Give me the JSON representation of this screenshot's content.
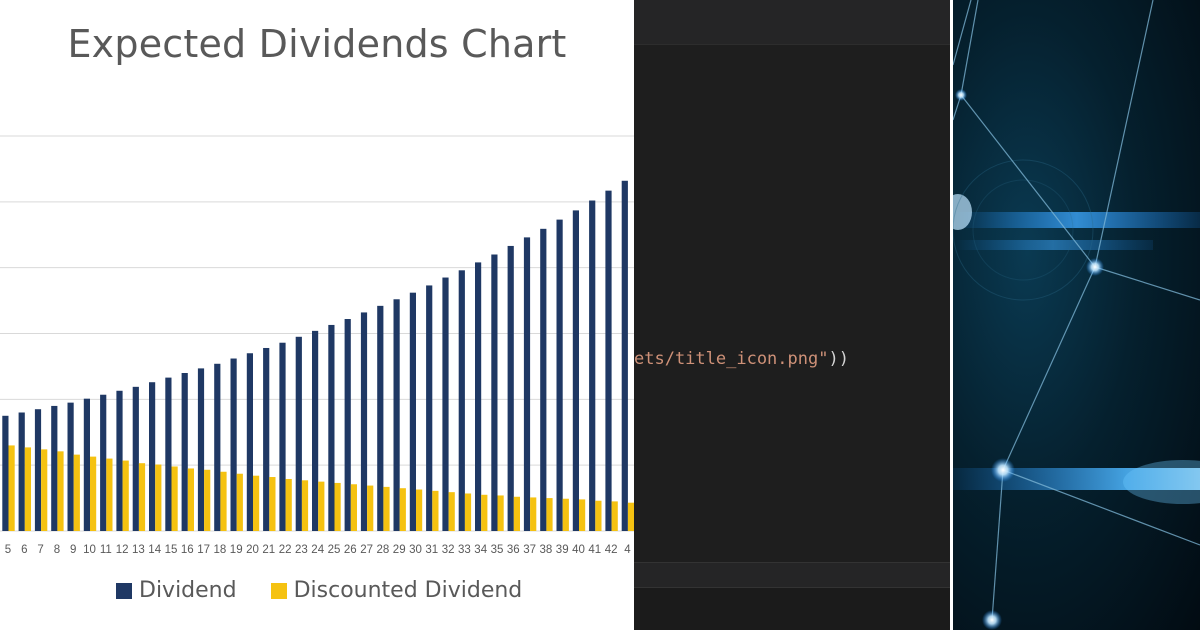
{
  "chart_data": {
    "type": "bar",
    "title": "Expected Dividends Chart",
    "categories": [
      "5",
      "6",
      "7",
      "8",
      "9",
      "10",
      "11",
      "12",
      "13",
      "14",
      "15",
      "16",
      "17",
      "18",
      "19",
      "20",
      "21",
      "22",
      "23",
      "24",
      "25",
      "26",
      "27",
      "28",
      "29",
      "30",
      "31",
      "32",
      "33",
      "34",
      "35",
      "36",
      "37",
      "38",
      "39",
      "40",
      "41",
      "42",
      "4"
    ],
    "series": [
      {
        "name": "Dividend",
        "color": "#1f3864",
        "values": [
          1.75,
          1.8,
          1.85,
          1.9,
          1.95,
          2.01,
          2.07,
          2.13,
          2.19,
          2.26,
          2.33,
          2.4,
          2.47,
          2.54,
          2.62,
          2.7,
          2.78,
          2.86,
          2.95,
          3.04,
          3.13,
          3.22,
          3.32,
          3.42,
          3.52,
          3.62,
          3.73,
          3.85,
          3.96,
          4.08,
          4.2,
          4.33,
          4.46,
          4.59,
          4.73,
          4.87,
          5.02,
          5.17,
          5.32
        ]
      },
      {
        "name": "Discounted Dividend",
        "color": "#f5c211",
        "values": [
          1.3,
          1.27,
          1.24,
          1.21,
          1.16,
          1.13,
          1.1,
          1.07,
          1.03,
          1.01,
          0.98,
          0.95,
          0.93,
          0.9,
          0.87,
          0.84,
          0.82,
          0.79,
          0.77,
          0.75,
          0.73,
          0.71,
          0.69,
          0.67,
          0.65,
          0.63,
          0.61,
          0.59,
          0.57,
          0.55,
          0.54,
          0.52,
          0.51,
          0.5,
          0.49,
          0.48,
          0.46,
          0.45,
          0.43
        ]
      }
    ],
    "ylim": [
      0,
      6
    ],
    "grid": true,
    "legend_position": "bottom"
  },
  "code": {
    "string_text": "ets/title_icon.png\"",
    "paren_text": "))"
  },
  "colors": {
    "code_background": "#1e1e1e",
    "code_string": "#ce9178",
    "network_glow": "#1e90ff"
  }
}
